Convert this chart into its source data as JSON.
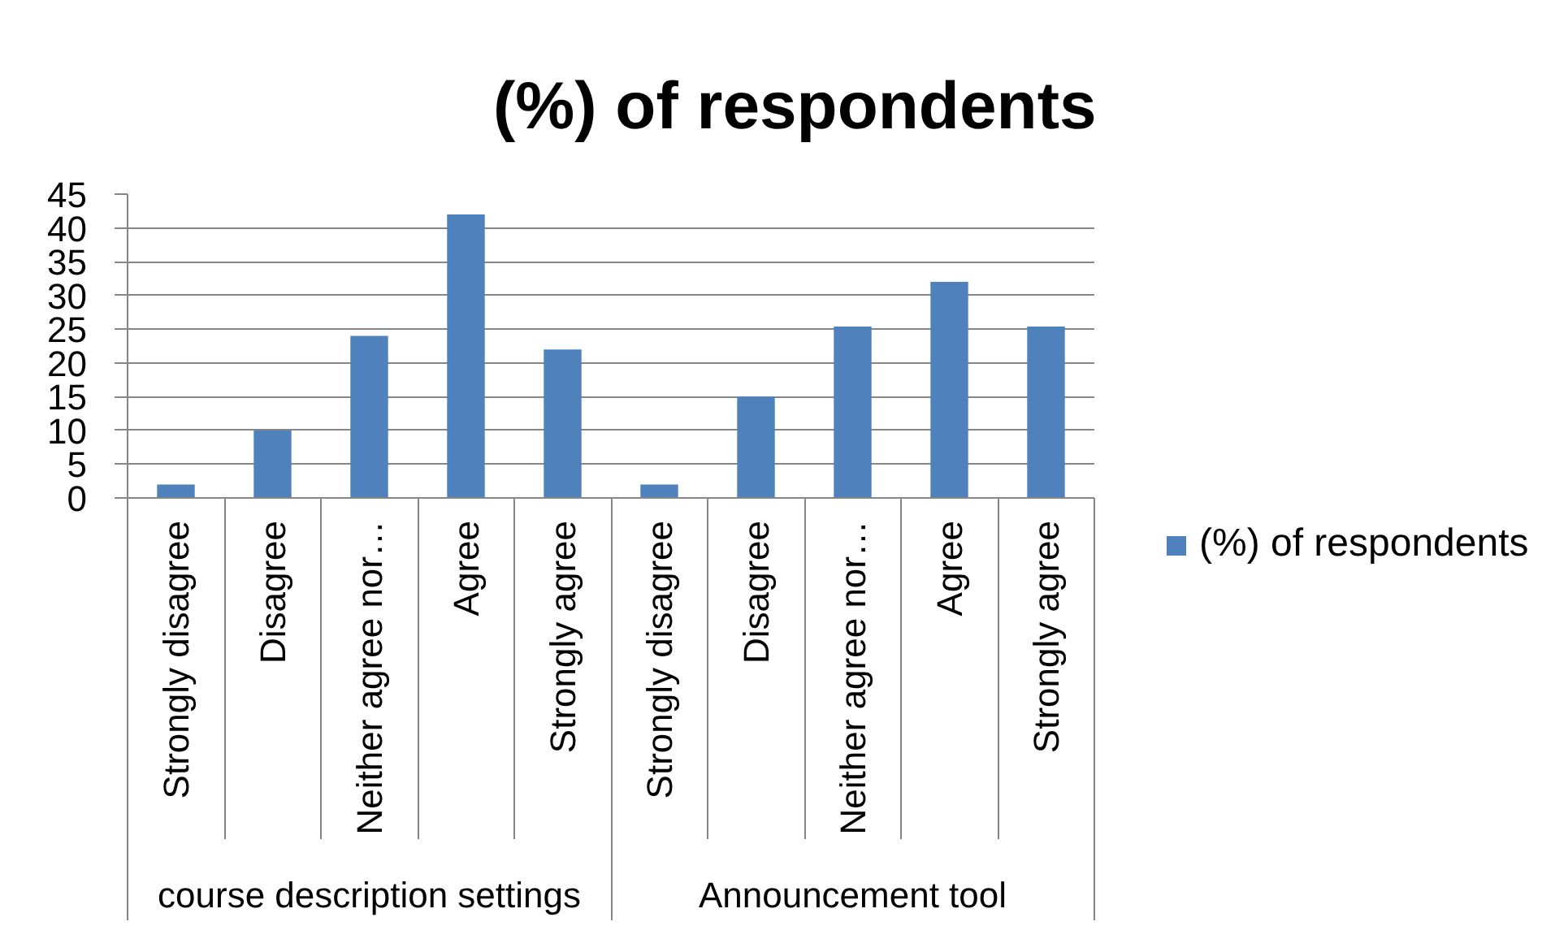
{
  "chart_data": {
    "type": "bar",
    "title": "(%) of respondents",
    "categories": [
      "Strongly disagree",
      "Disagree",
      "Neither agree nor…",
      "Agree",
      "Strongly agree",
      "Strongly disagree",
      "Disagree",
      "Neither agree nor…",
      "Agree",
      "Strongly agree"
    ],
    "annotations": [
      "course description settings",
      "Announcement tool"
    ],
    "series": [
      {
        "name": "(%) of respondents",
        "color": "#4f81bd",
        "values": [
          2,
          10,
          24,
          42,
          22,
          2,
          15,
          25.4,
          32,
          25.4
        ]
      }
    ],
    "ylim": [
      0,
      45
    ],
    "yticks": [
      0,
      5,
      10,
      15,
      20,
      25,
      30,
      35,
      40,
      45
    ],
    "grid": "y",
    "legend": "right"
  }
}
